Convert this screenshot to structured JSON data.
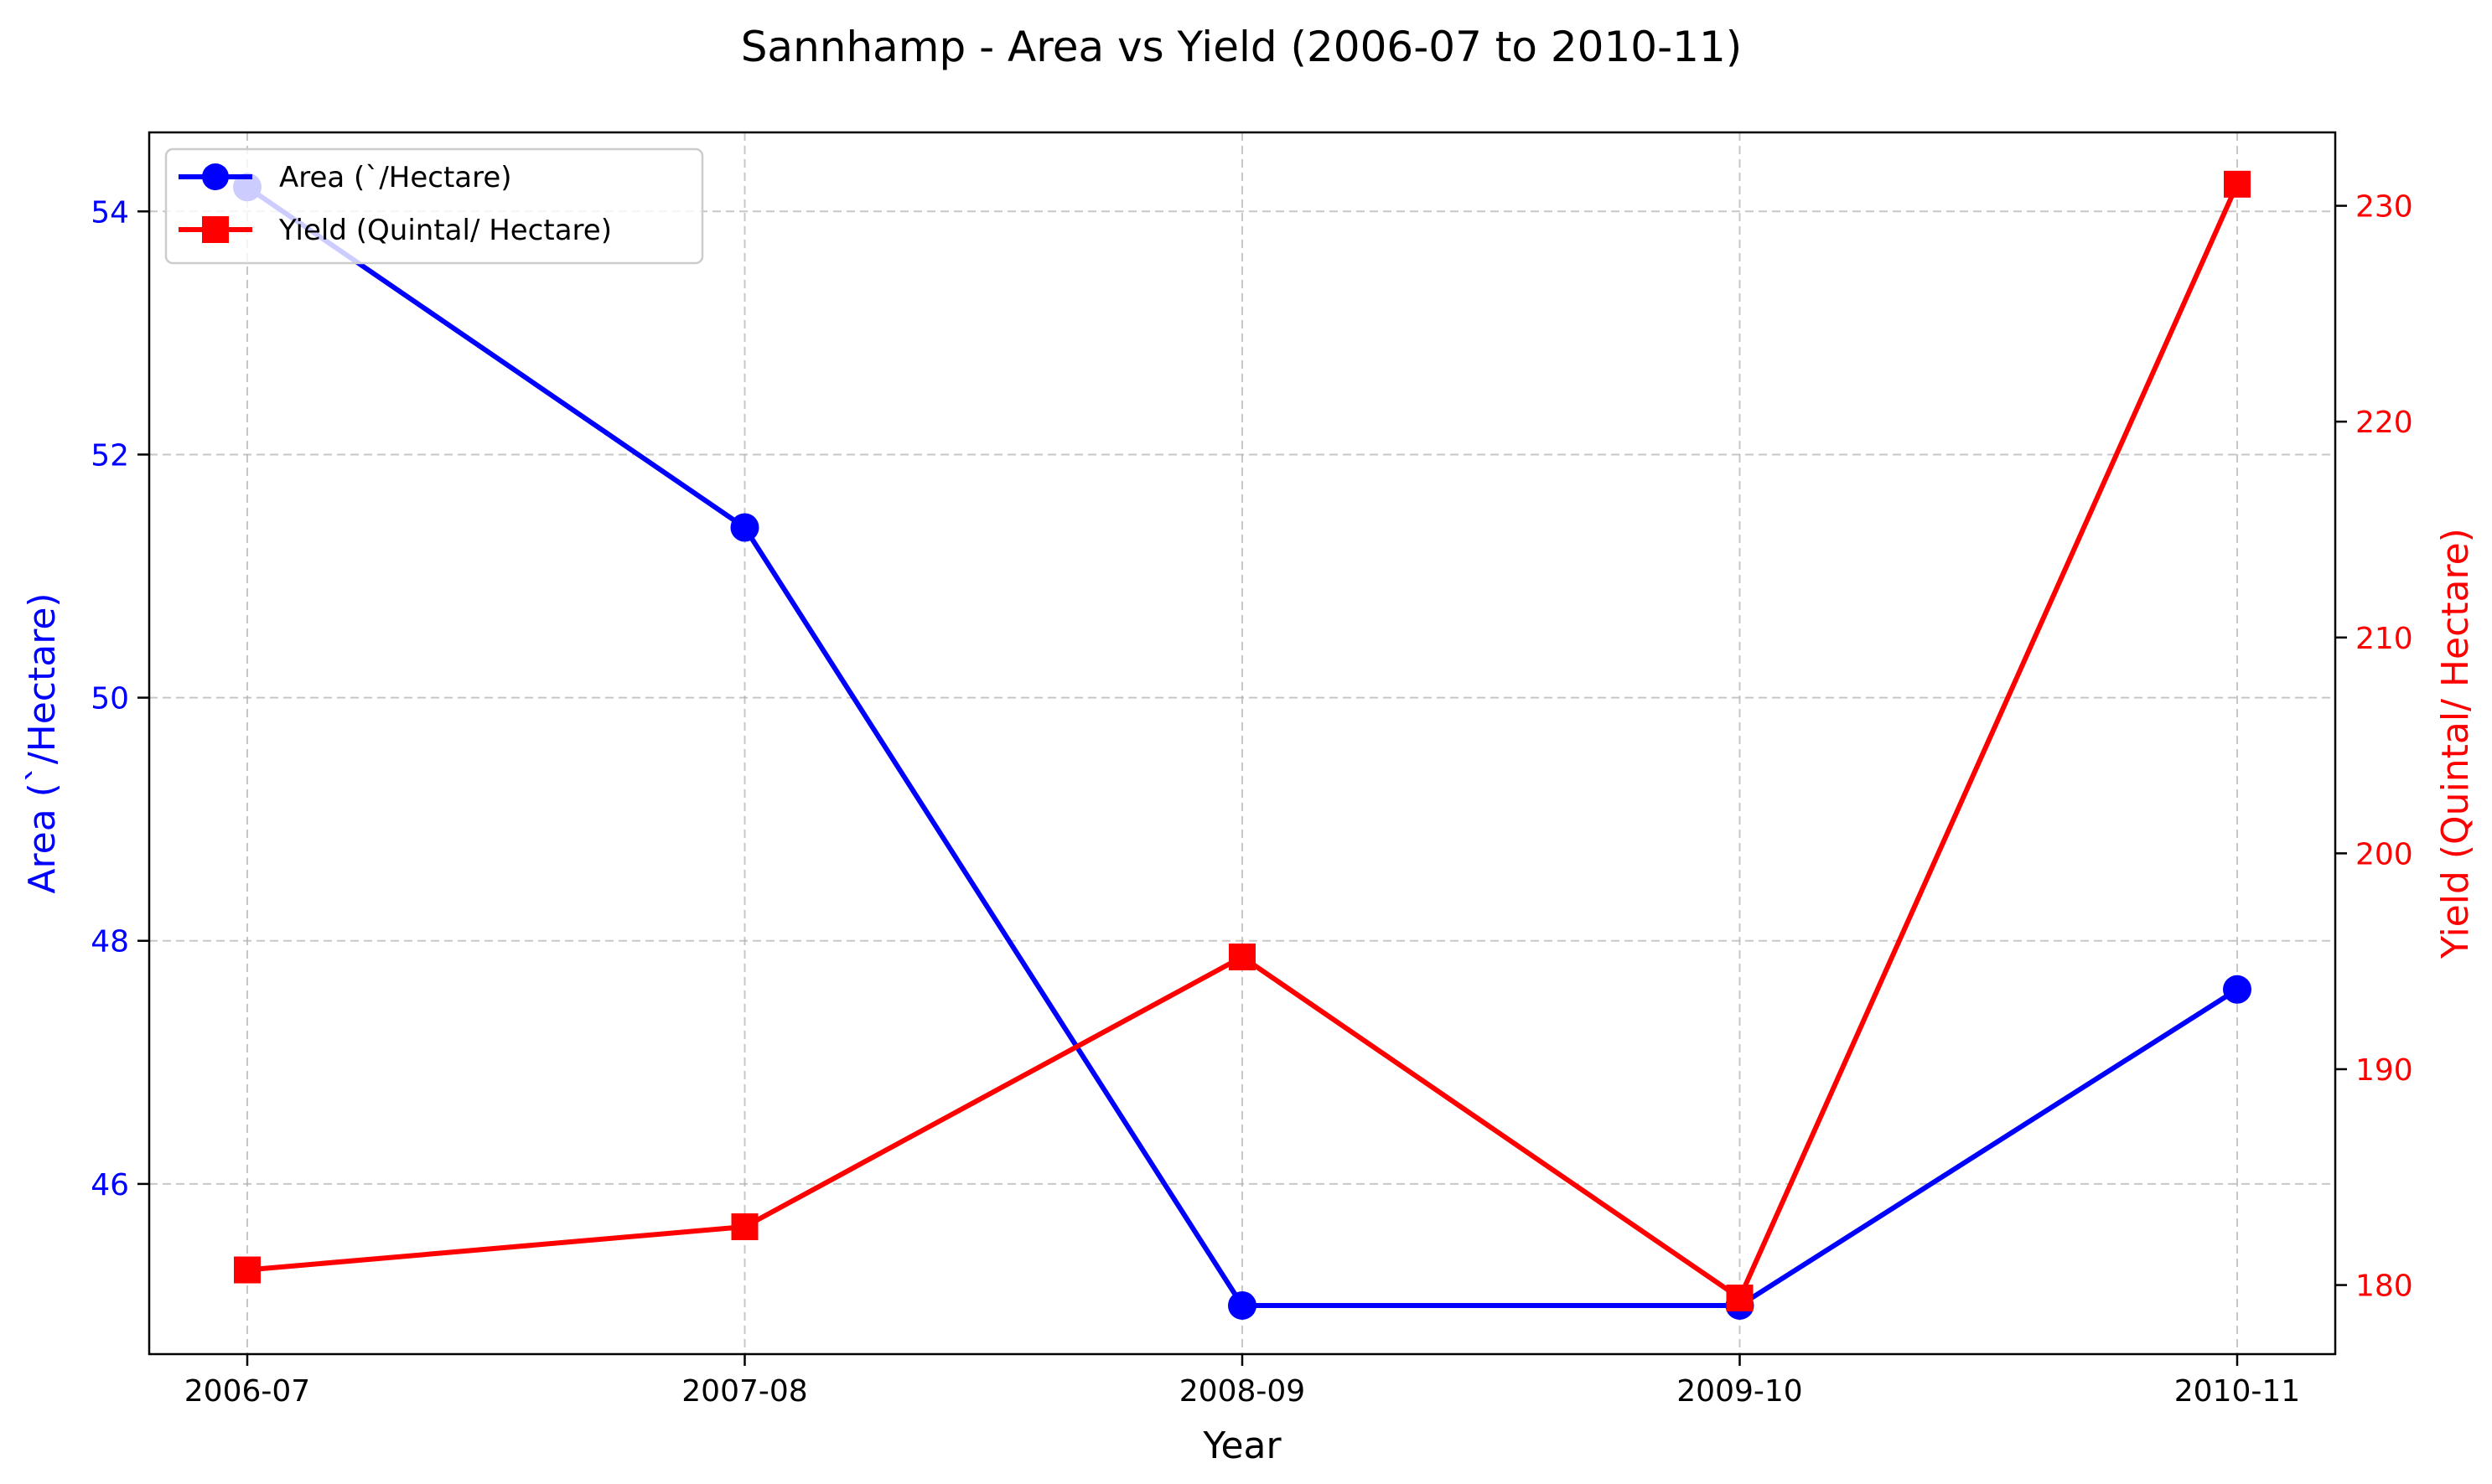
{
  "chart_data": {
    "type": "line",
    "title": "Sannhamp  - Area vs Yield (2006-07 to 2010-11)",
    "xlabel": "Year",
    "categories": [
      "2006-07",
      "2007-08",
      "2008-09",
      "2009-10",
      "2010-11"
    ],
    "grid": true,
    "legend_position": "top-left",
    "y_left": {
      "label": "Area (`/Hectare)",
      "range": [
        44.6,
        54.65
      ],
      "ticks": [
        "46",
        "48",
        "50",
        "52",
        "54"
      ],
      "color": "#0000ff"
    },
    "y_right": {
      "label": "Yield (Quintal/ Hectare)",
      "range": [
        176.8,
        233.4
      ],
      "ticks": [
        "180",
        "190",
        "200",
        "210",
        "220",
        "230"
      ],
      "color": "#ff0000"
    },
    "series": [
      {
        "name": "Area (`/Hectare)",
        "axis": "left",
        "color": "#0000ff",
        "marker": "circle",
        "values": [
          54.2,
          51.4,
          45.0,
          45.0,
          47.6
        ]
      },
      {
        "name": "Yield (Quintal/ Hectare)",
        "axis": "right",
        "color": "#ff0000",
        "marker": "square",
        "values": [
          180.7,
          182.7,
          195.2,
          179.4,
          231.0
        ]
      }
    ]
  }
}
